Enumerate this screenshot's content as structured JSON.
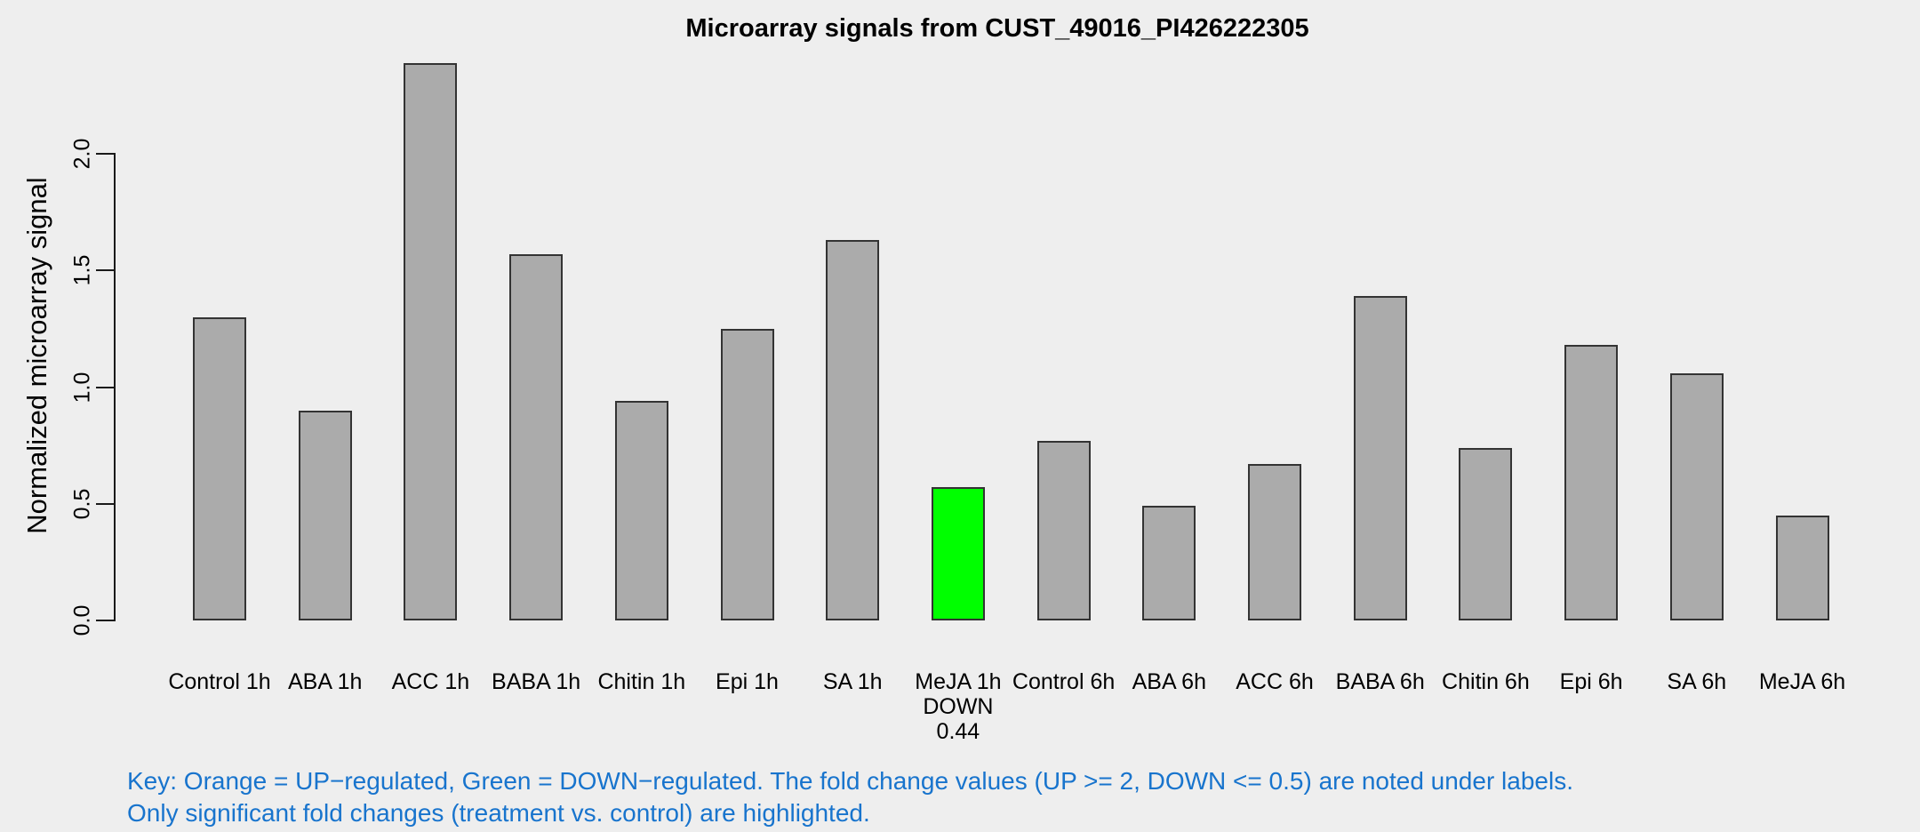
{
  "chart_data": {
    "type": "bar",
    "title": "Microarray signals from CUST_49016_PI426222305",
    "xlabel": "",
    "ylabel": "Normalized microarray signal",
    "categories": [
      "Control 1h",
      "ABA 1h",
      "ACC 1h",
      "BABA 1h",
      "Chitin 1h",
      "Epi 1h",
      "SA 1h",
      "MeJA 1h",
      "Control 6h",
      "ABA 6h",
      "ACC 6h",
      "BABA 6h",
      "Chitin 6h",
      "Epi 6h",
      "SA 6h",
      "MeJA 6h"
    ],
    "values": [
      1.3,
      0.9,
      2.39,
      1.57,
      0.94,
      1.25,
      1.63,
      0.57,
      0.77,
      0.49,
      0.67,
      1.39,
      0.74,
      1.18,
      1.06,
      0.45
    ],
    "yticks": [
      "0.0",
      "0.5",
      "1.0",
      "1.5",
      "2.0"
    ],
    "ylim": [
      0.0,
      2.39
    ],
    "grid": false,
    "legend_position": "none",
    "highlighted_bars": [
      {
        "index": 7,
        "category": "MeJA 1h",
        "status": "DOWN",
        "fold_change": "0.44",
        "color": "#00FF00"
      }
    ]
  },
  "colors": {
    "background": "#EEEEEE",
    "default_bar": "#ABABAB",
    "bar_border": "#333333",
    "up_regulated": "#FFA500",
    "down_regulated": "#00FF00",
    "key_text": "#1874CD",
    "axis_text": "#000000"
  },
  "key": {
    "line1": "Key: Orange = UP−regulated, Green = DOWN−regulated. The fold change values (UP >= 2, DOWN <= 0.5) are noted under labels.",
    "line2": "Only significant fold changes (treatment vs. control) are highlighted."
  }
}
